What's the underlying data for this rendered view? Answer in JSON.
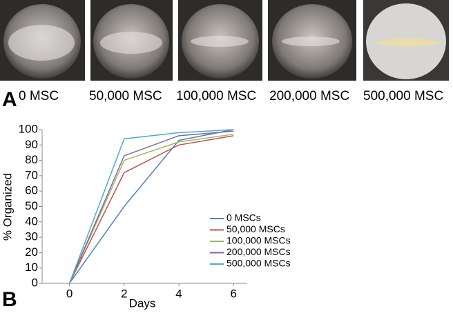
{
  "panel_a": {
    "label": "A",
    "captions": [
      "0 MSC",
      "50,000 MSC",
      "100,000 MSC",
      "200,000 MSC",
      "500,000 MSC"
    ]
  },
  "chart_data": {
    "type": "line",
    "panel_label": "B",
    "xlabel": "Days",
    "ylabel": "% Organized",
    "x": [
      0,
      2,
      4,
      6
    ],
    "series": [
      {
        "name": "0 MSCs",
        "color": "#4f81bd",
        "values": [
          0,
          50,
          93,
          100
        ]
      },
      {
        "name": "50,000 MSCs",
        "color": "#c0504d",
        "values": [
          0,
          72,
          90,
          96
        ]
      },
      {
        "name": "100,000 MSCs",
        "color": "#9bbb59",
        "values": [
          0,
          80,
          92,
          97
        ]
      },
      {
        "name": "200,000 MSCs",
        "color": "#8064a2",
        "values": [
          0,
          83,
          96,
          99
        ]
      },
      {
        "name": "500,000 MSCs",
        "color": "#4bacc6",
        "values": [
          0,
          94,
          98,
          100
        ]
      }
    ],
    "xlim": [
      -1,
      6.5
    ],
    "xticks": [
      0,
      2,
      4,
      6
    ],
    "ylim": [
      0,
      100
    ],
    "yticks": [
      0,
      10,
      20,
      30,
      40,
      50,
      60,
      70,
      80,
      90,
      100
    ],
    "legend": "right"
  }
}
